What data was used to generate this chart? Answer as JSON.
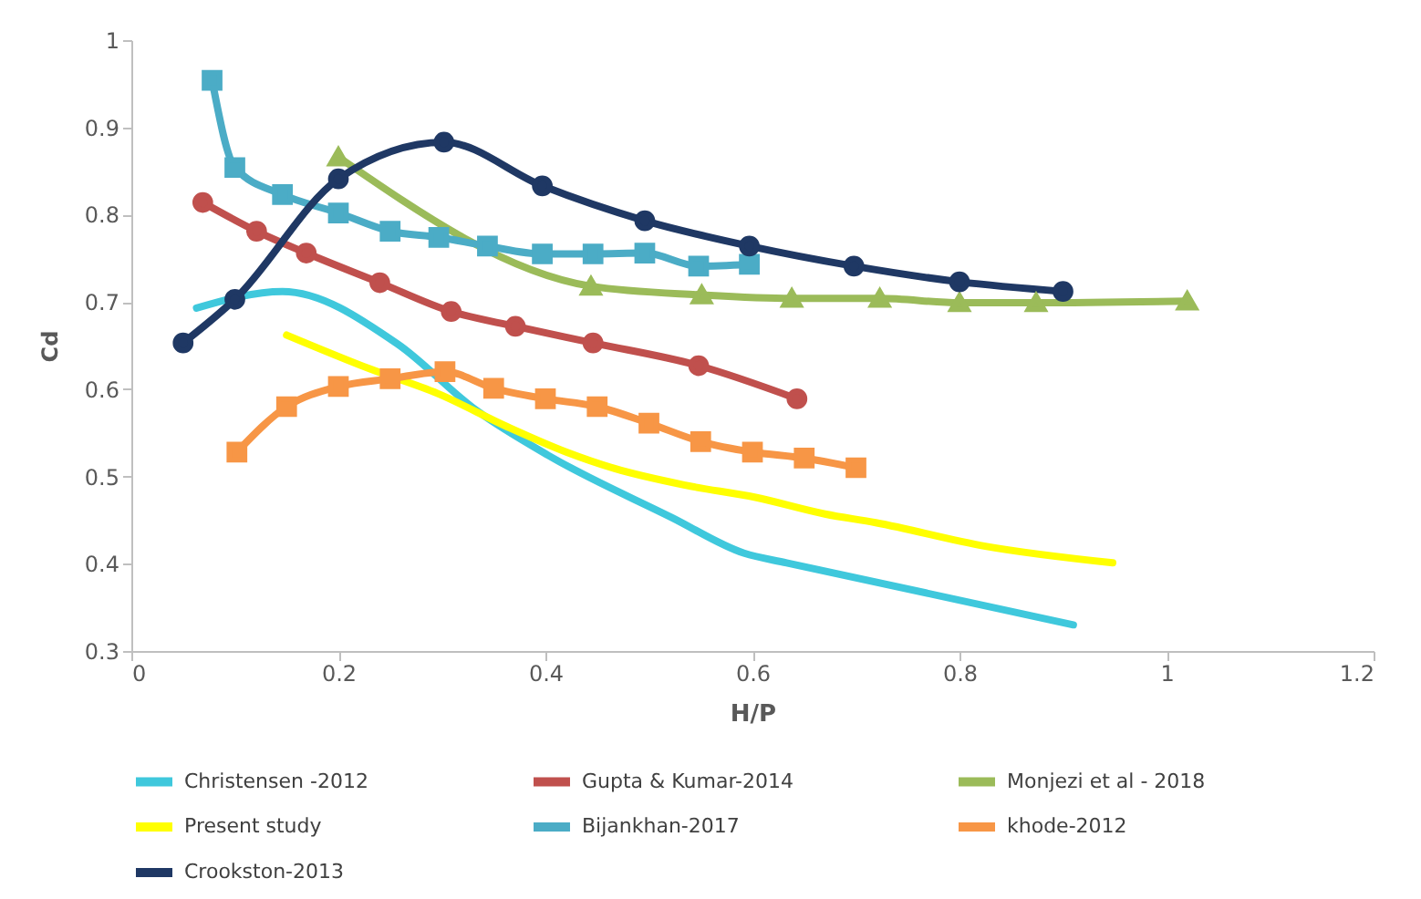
{
  "chart_data": {
    "type": "line",
    "xlabel": "H/P",
    "ylabel": "Cd",
    "xlim": [
      0,
      1.2
    ],
    "ylim": [
      0.3,
      1
    ],
    "xticks": [
      0,
      0.2,
      0.4,
      0.6,
      0.8,
      1,
      1.2
    ],
    "yticks": [
      0.3,
      0.4,
      0.5,
      0.6,
      0.7,
      0.8,
      0.9,
      1
    ],
    "grid": false,
    "legend": "bottom",
    "series": [
      {
        "name": "Christensen -2012",
        "color": "#3fc8dc",
        "marker": "none",
        "x": [
          0.063,
          0.146,
          0.257,
          0.333,
          0.403,
          0.522,
          0.592,
          0.633,
          0.91
        ],
        "values": [
          0.693,
          0.712,
          0.652,
          0.576,
          0.524,
          0.453,
          0.412,
          0.401,
          0.33
        ]
      },
      {
        "name": "Gupta & Kumar-2014",
        "color": "#c0504d",
        "marker": "circle",
        "x": [
          0.069,
          0.121,
          0.169,
          0.24,
          0.309,
          0.371,
          0.446,
          0.548,
          0.643
        ],
        "values": [
          0.814,
          0.781,
          0.756,
          0.722,
          0.689,
          0.672,
          0.653,
          0.627,
          0.589
        ]
      },
      {
        "name": "Monjezi et al - 2018",
        "color": "#9bbb59",
        "marker": "triangle",
        "x": [
          0.2,
          0.444,
          0.551,
          0.638,
          0.723,
          0.8,
          0.874,
          1.02
        ],
        "values": [
          0.866,
          0.718,
          0.708,
          0.704,
          0.704,
          0.699,
          0.699,
          0.701
        ]
      },
      {
        "name": "Present study",
        "color": "#ffff00",
        "marker": "none",
        "x": [
          0.15,
          0.231,
          0.296,
          0.363,
          0.42,
          0.467,
          0.535,
          0.603,
          0.67,
          0.719,
          0.825,
          0.948
        ],
        "values": [
          0.662,
          0.623,
          0.595,
          0.557,
          0.528,
          0.509,
          0.49,
          0.476,
          0.457,
          0.447,
          0.42,
          0.401
        ]
      },
      {
        "name": "Bijankhan-2017",
        "color": "#4bacc6",
        "marker": "square",
        "x": [
          0.078,
          0.1,
          0.146,
          0.2,
          0.25,
          0.297,
          0.344,
          0.397,
          0.446,
          0.496,
          0.548,
          0.597
        ],
        "values": [
          0.954,
          0.854,
          0.823,
          0.802,
          0.781,
          0.774,
          0.764,
          0.755,
          0.755,
          0.756,
          0.741,
          0.743
        ]
      },
      {
        "name": "khode-2012",
        "color": "#f79646",
        "marker": "square",
        "x": [
          0.102,
          0.15,
          0.2,
          0.25,
          0.303,
          0.35,
          0.4,
          0.45,
          0.5,
          0.55,
          0.6,
          0.65,
          0.7
        ],
        "values": [
          0.528,
          0.58,
          0.603,
          0.612,
          0.62,
          0.601,
          0.589,
          0.58,
          0.561,
          0.54,
          0.528,
          0.521,
          0.51
        ]
      },
      {
        "name": "Crookston-2013",
        "color": "#1f3864",
        "marker": "circle",
        "x": [
          0.05,
          0.1,
          0.2,
          0.302,
          0.397,
          0.496,
          0.597,
          0.698,
          0.8,
          0.9
        ],
        "values": [
          0.653,
          0.703,
          0.841,
          0.883,
          0.833,
          0.793,
          0.764,
          0.741,
          0.723,
          0.712
        ]
      }
    ]
  }
}
